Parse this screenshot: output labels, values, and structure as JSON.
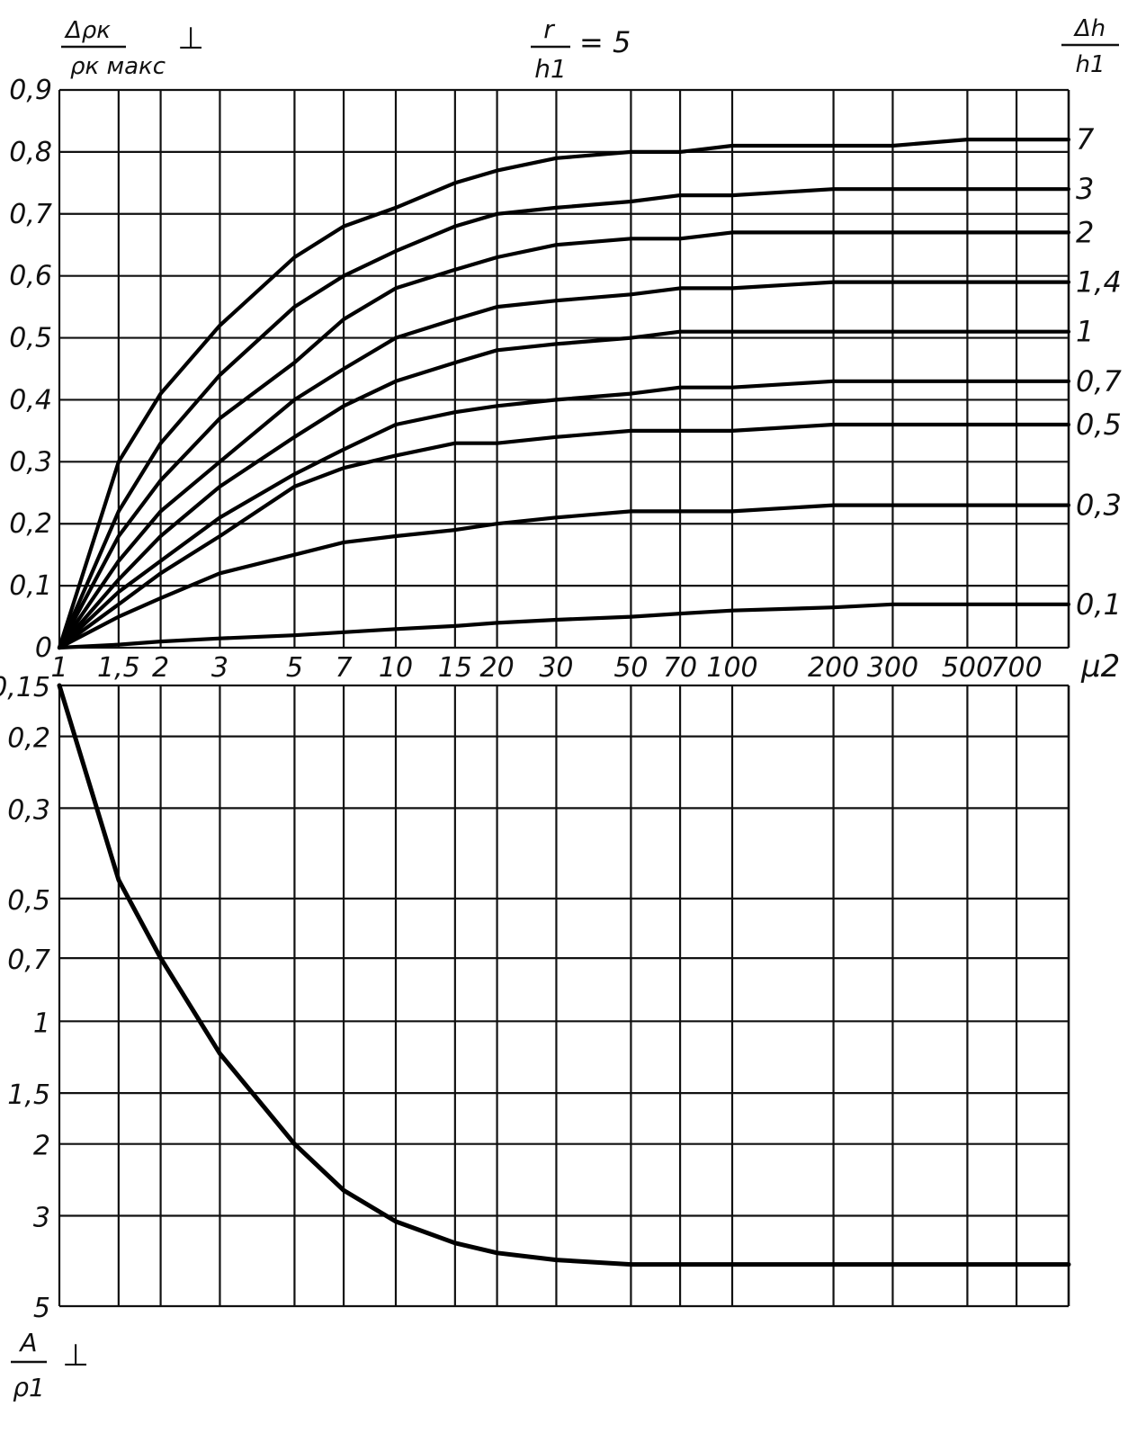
{
  "header": {
    "y_label_top_num": "Δρк",
    "y_label_top_den": "ρк макс",
    "perp_mark": "⊥",
    "param_num": "r",
    "param_den": "h1",
    "param_value": "= 5",
    "right_label_num": "Δh",
    "right_label_den": "h1",
    "x_axis_label": "μ2",
    "y_label_bottom_num": "A",
    "y_label_bottom_den": "ρ1",
    "bottom_mark": "⊥"
  },
  "chart_data": [
    {
      "type": "line",
      "x_scale": "log",
      "xlim": [
        1,
        1000
      ],
      "ylim": [
        0,
        0.9
      ],
      "x_ticks": [
        1,
        1.5,
        2,
        3,
        5,
        7,
        10,
        15,
        20,
        30,
        50,
        70,
        100,
        200,
        300,
        500,
        700
      ],
      "x_tick_labels": [
        "1",
        "1,5",
        "2",
        "3",
        "5",
        "7",
        "10",
        "15",
        "20",
        "30",
        "50",
        "70",
        "100",
        "200",
        "300",
        "500",
        "700"
      ],
      "y_ticks": [
        0,
        0.1,
        0.2,
        0.3,
        0.4,
        0.5,
        0.6,
        0.7,
        0.8,
        0.9
      ],
      "y_tick_labels": [
        "0",
        "0,1",
        "0,2",
        "0,3",
        "0,4",
        "0,5",
        "0,6",
        "0,7",
        "0,8",
        "0,9"
      ],
      "grid": true,
      "x": [
        1,
        1.5,
        2,
        3,
        5,
        7,
        10,
        15,
        20,
        30,
        50,
        70,
        100,
        200,
        300,
        500,
        1000
      ],
      "series": [
        {
          "name": "7",
          "values": [
            0,
            0.3,
            0.41,
            0.52,
            0.63,
            0.68,
            0.71,
            0.75,
            0.77,
            0.79,
            0.8,
            0.8,
            0.81,
            0.81,
            0.81,
            0.82,
            0.82
          ]
        },
        {
          "name": "3",
          "values": [
            0,
            0.22,
            0.33,
            0.44,
            0.55,
            0.6,
            0.64,
            0.68,
            0.7,
            0.71,
            0.72,
            0.73,
            0.73,
            0.74,
            0.74,
            0.74,
            0.74
          ]
        },
        {
          "name": "2",
          "values": [
            0,
            0.18,
            0.27,
            0.37,
            0.46,
            0.53,
            0.58,
            0.61,
            0.63,
            0.65,
            0.66,
            0.66,
            0.67,
            0.67,
            0.67,
            0.67,
            0.67
          ]
        },
        {
          "name": "1,4",
          "values": [
            0,
            0.14,
            0.22,
            0.3,
            0.4,
            0.45,
            0.5,
            0.53,
            0.55,
            0.56,
            0.57,
            0.58,
            0.58,
            0.59,
            0.59,
            0.59,
            0.59
          ]
        },
        {
          "name": "1",
          "values": [
            0,
            0.11,
            0.18,
            0.26,
            0.34,
            0.39,
            0.43,
            0.46,
            0.48,
            0.49,
            0.5,
            0.51,
            0.51,
            0.51,
            0.51,
            0.51,
            0.51
          ]
        },
        {
          "name": "0,7",
          "values": [
            0,
            0.09,
            0.14,
            0.21,
            0.28,
            0.32,
            0.36,
            0.38,
            0.39,
            0.4,
            0.41,
            0.42,
            0.42,
            0.43,
            0.43,
            0.43,
            0.43
          ]
        },
        {
          "name": "0,5",
          "values": [
            0,
            0.07,
            0.12,
            0.18,
            0.26,
            0.29,
            0.31,
            0.33,
            0.33,
            0.34,
            0.35,
            0.35,
            0.35,
            0.36,
            0.36,
            0.36,
            0.36
          ]
        },
        {
          "name": "0,3",
          "values": [
            0,
            0.05,
            0.08,
            0.12,
            0.15,
            0.17,
            0.18,
            0.19,
            0.2,
            0.21,
            0.22,
            0.22,
            0.22,
            0.23,
            0.23,
            0.23,
            0.23
          ]
        },
        {
          "name": "0,1",
          "values": [
            0,
            0.005,
            0.01,
            0.015,
            0.02,
            0.025,
            0.03,
            0.035,
            0.04,
            0.045,
            0.05,
            0.055,
            0.06,
            0.065,
            0.07,
            0.07,
            0.07
          ]
        }
      ]
    },
    {
      "type": "line",
      "x_scale": "log",
      "y_scale": "log",
      "xlim": [
        1,
        1000
      ],
      "ylim": [
        0.15,
        5
      ],
      "y_inverted": true,
      "y_ticks": [
        0.15,
        0.2,
        0.3,
        0.5,
        0.7,
        1,
        1.5,
        2,
        3,
        5
      ],
      "y_tick_labels": [
        "0,15",
        "0,2",
        "0,3",
        "0,5",
        "0,7",
        "1",
        "1,5",
        "2",
        "3",
        "5"
      ],
      "grid": true,
      "x": [
        1,
        1.5,
        2,
        3,
        5,
        7,
        10,
        15,
        20,
        30,
        50,
        70,
        100,
        200,
        300,
        500,
        1000
      ],
      "series": [
        {
          "name": "",
          "values": [
            0.15,
            0.45,
            0.7,
            1.2,
            2.0,
            2.6,
            3.1,
            3.5,
            3.7,
            3.85,
            3.95,
            3.95,
            3.95,
            3.95,
            3.95,
            3.95,
            3.95
          ]
        }
      ]
    }
  ]
}
